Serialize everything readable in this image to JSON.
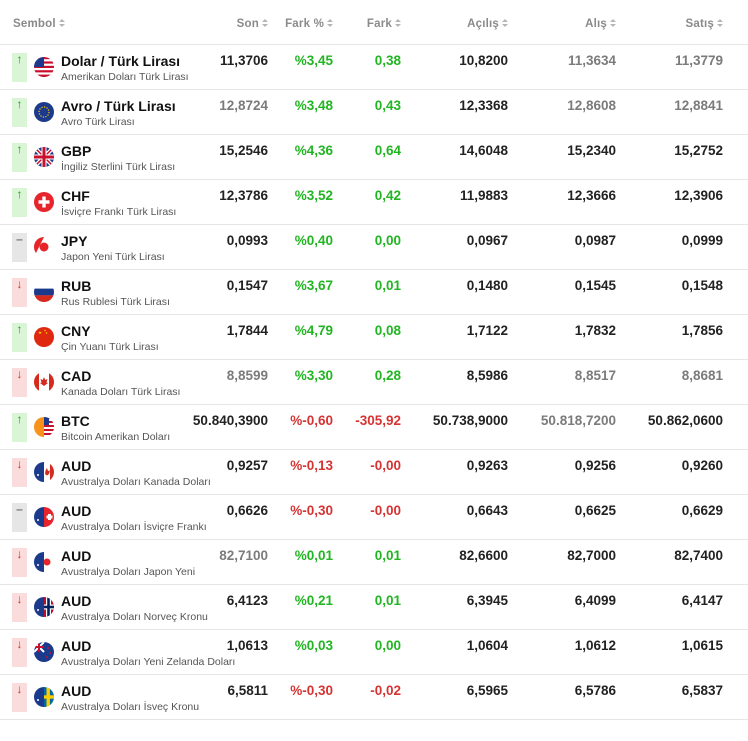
{
  "headers": {
    "symbol": "Sembol",
    "last": "Son",
    "change_pct": "Fark %",
    "change": "Fark",
    "open": "Açılış",
    "bid": "Alış",
    "ask": "Satış"
  },
  "rows": [
    {
      "icon": "arrow-up-icon",
      "name": "Dolar / Türk Lirası",
      "desc": "Amerikan Doları Türk Lirası",
      "flag": "usd",
      "last": "11,3706",
      "pct": "%3,45",
      "chg": "0,38",
      "open": "10,8200",
      "bid": "11,3634",
      "ask": "11,3779",
      "dir": "up",
      "lastTone": "dark",
      "chgTone": "pos",
      "bidTone": "grey",
      "askTone": "grey"
    },
    {
      "icon": "arrow-up-icon",
      "name": "Avro / Türk Lirası",
      "desc": "Avro Türk Lirası",
      "flag": "eur",
      "last": "12,8724",
      "pct": "%3,48",
      "chg": "0,43",
      "open": "12,3368",
      "bid": "12,8608",
      "ask": "12,8841",
      "dir": "up",
      "lastTone": "grey",
      "chgTone": "pos",
      "bidTone": "grey",
      "askTone": "grey"
    },
    {
      "icon": "arrow-up-icon",
      "name": "GBP",
      "desc": "İngiliz Sterlini Türk Lirası",
      "flag": "gbp",
      "last": "15,2546",
      "pct": "%4,36",
      "chg": "0,64",
      "open": "14,6048",
      "bid": "15,2340",
      "ask": "15,2752",
      "dir": "up",
      "lastTone": "dark",
      "chgTone": "pos",
      "bidTone": "dark",
      "askTone": "dark"
    },
    {
      "icon": "arrow-up-icon",
      "name": "CHF",
      "desc": "İsviçre Frankı Türk Lirası",
      "flag": "chf",
      "last": "12,3786",
      "pct": "%3,52",
      "chg": "0,42",
      "open": "11,9883",
      "bid": "12,3666",
      "ask": "12,3906",
      "dir": "up",
      "lastTone": "dark",
      "chgTone": "pos",
      "bidTone": "dark",
      "askTone": "dark"
    },
    {
      "icon": "dash-icon",
      "name": "JPY",
      "desc": "Japon Yeni Türk Lirası",
      "flag": "jpy",
      "last": "0,0993",
      "pct": "%0,40",
      "chg": "0,00",
      "open": "0,0967",
      "bid": "0,0987",
      "ask": "0,0999",
      "dir": "flat",
      "lastTone": "dark",
      "chgTone": "pos",
      "bidTone": "dark",
      "askTone": "dark"
    },
    {
      "icon": "arrow-down-icon",
      "name": "RUB",
      "desc": "Rus Rublesi Türk Lirası",
      "flag": "rub",
      "last": "0,1547",
      "pct": "%3,67",
      "chg": "0,01",
      "open": "0,1480",
      "bid": "0,1545",
      "ask": "0,1548",
      "dir": "down",
      "lastTone": "dark",
      "chgTone": "pos",
      "bidTone": "dark",
      "askTone": "dark"
    },
    {
      "icon": "arrow-up-icon",
      "name": "CNY",
      "desc": "Çin Yuanı Türk Lirası",
      "flag": "cny",
      "last": "1,7844",
      "pct": "%4,79",
      "chg": "0,08",
      "open": "1,7122",
      "bid": "1,7832",
      "ask": "1,7856",
      "dir": "up",
      "lastTone": "dark",
      "chgTone": "pos",
      "bidTone": "dark",
      "askTone": "dark"
    },
    {
      "icon": "arrow-down-icon",
      "name": "CAD",
      "desc": "Kanada Doları Türk Lirası",
      "flag": "cad",
      "last": "8,8599",
      "pct": "%3,30",
      "chg": "0,28",
      "open": "8,5986",
      "bid": "8,8517",
      "ask": "8,8681",
      "dir": "down",
      "lastTone": "grey",
      "chgTone": "pos",
      "bidTone": "grey",
      "askTone": "grey"
    },
    {
      "icon": "arrow-up-icon",
      "name": "BTC",
      "desc": "Bitcoin Amerikan Doları",
      "flag": "btc",
      "last": "50.840,3900",
      "pct": "%-0,60",
      "chg": "-305,92",
      "open": "50.738,9000",
      "bid": "50.818,7200",
      "ask": "50.862,0600",
      "dir": "up",
      "lastTone": "dark",
      "chgTone": "neg",
      "bidTone": "grey",
      "askTone": "dark"
    },
    {
      "icon": "arrow-down-icon",
      "name": "AUD",
      "desc": "Avustralya Doları Kanada Doları",
      "flag": "aud-cad",
      "last": "0,9257",
      "pct": "%-0,13",
      "chg": "-0,00",
      "open": "0,9263",
      "bid": "0,9256",
      "ask": "0,9260",
      "dir": "down",
      "lastTone": "dark",
      "chgTone": "neg",
      "bidTone": "dark",
      "askTone": "dark"
    },
    {
      "icon": "dash-icon",
      "name": "AUD",
      "desc": "Avustralya Doları İsviçre Frankı",
      "flag": "aud-chf",
      "last": "0,6626",
      "pct": "%-0,30",
      "chg": "-0,00",
      "open": "0,6643",
      "bid": "0,6625",
      "ask": "0,6629",
      "dir": "flat",
      "lastTone": "dark",
      "chgTone": "neg",
      "bidTone": "dark",
      "askTone": "dark"
    },
    {
      "icon": "arrow-down-icon",
      "name": "AUD",
      "desc": "Avustralya Doları Japon Yeni",
      "flag": "aud-jpy",
      "last": "82,7100",
      "pct": "%0,01",
      "chg": "0,01",
      "open": "82,6600",
      "bid": "82,7000",
      "ask": "82,7400",
      "dir": "down",
      "lastTone": "grey",
      "chgTone": "pos",
      "bidTone": "dark",
      "askTone": "dark"
    },
    {
      "icon": "arrow-down-icon",
      "name": "AUD",
      "desc": "Avustralya Doları Norveç Kronu",
      "flag": "aud-nok",
      "last": "6,4123",
      "pct": "%0,21",
      "chg": "0,01",
      "open": "6,3945",
      "bid": "6,4099",
      "ask": "6,4147",
      "dir": "down",
      "lastTone": "dark",
      "chgTone": "pos",
      "bidTone": "dark",
      "askTone": "dark"
    },
    {
      "icon": "arrow-down-icon",
      "name": "AUD",
      "desc": "Avustralya Doları Yeni Zelanda Doları",
      "flag": "aud-nzd",
      "last": "1,0613",
      "pct": "%0,03",
      "chg": "0,00",
      "open": "1,0604",
      "bid": "1,0612",
      "ask": "1,0615",
      "dir": "down",
      "lastTone": "dark",
      "chgTone": "pos",
      "bidTone": "dark",
      "askTone": "dark"
    },
    {
      "icon": "arrow-down-icon",
      "name": "AUD",
      "desc": "Avustralya Doları İsveç Kronu",
      "flag": "aud-sek",
      "last": "6,5811",
      "pct": "%-0,30",
      "chg": "-0,02",
      "open": "6,5965",
      "bid": "6,5786",
      "ask": "6,5837",
      "dir": "down",
      "lastTone": "dark",
      "chgTone": "neg",
      "bidTone": "dark",
      "askTone": "dark"
    }
  ],
  "colors": {
    "positive": "#21b521",
    "negative": "#d63333",
    "up_bg": "#d9f5d6",
    "down_bg": "#fbdcdc",
    "flat_bg": "#e6e6e6"
  }
}
